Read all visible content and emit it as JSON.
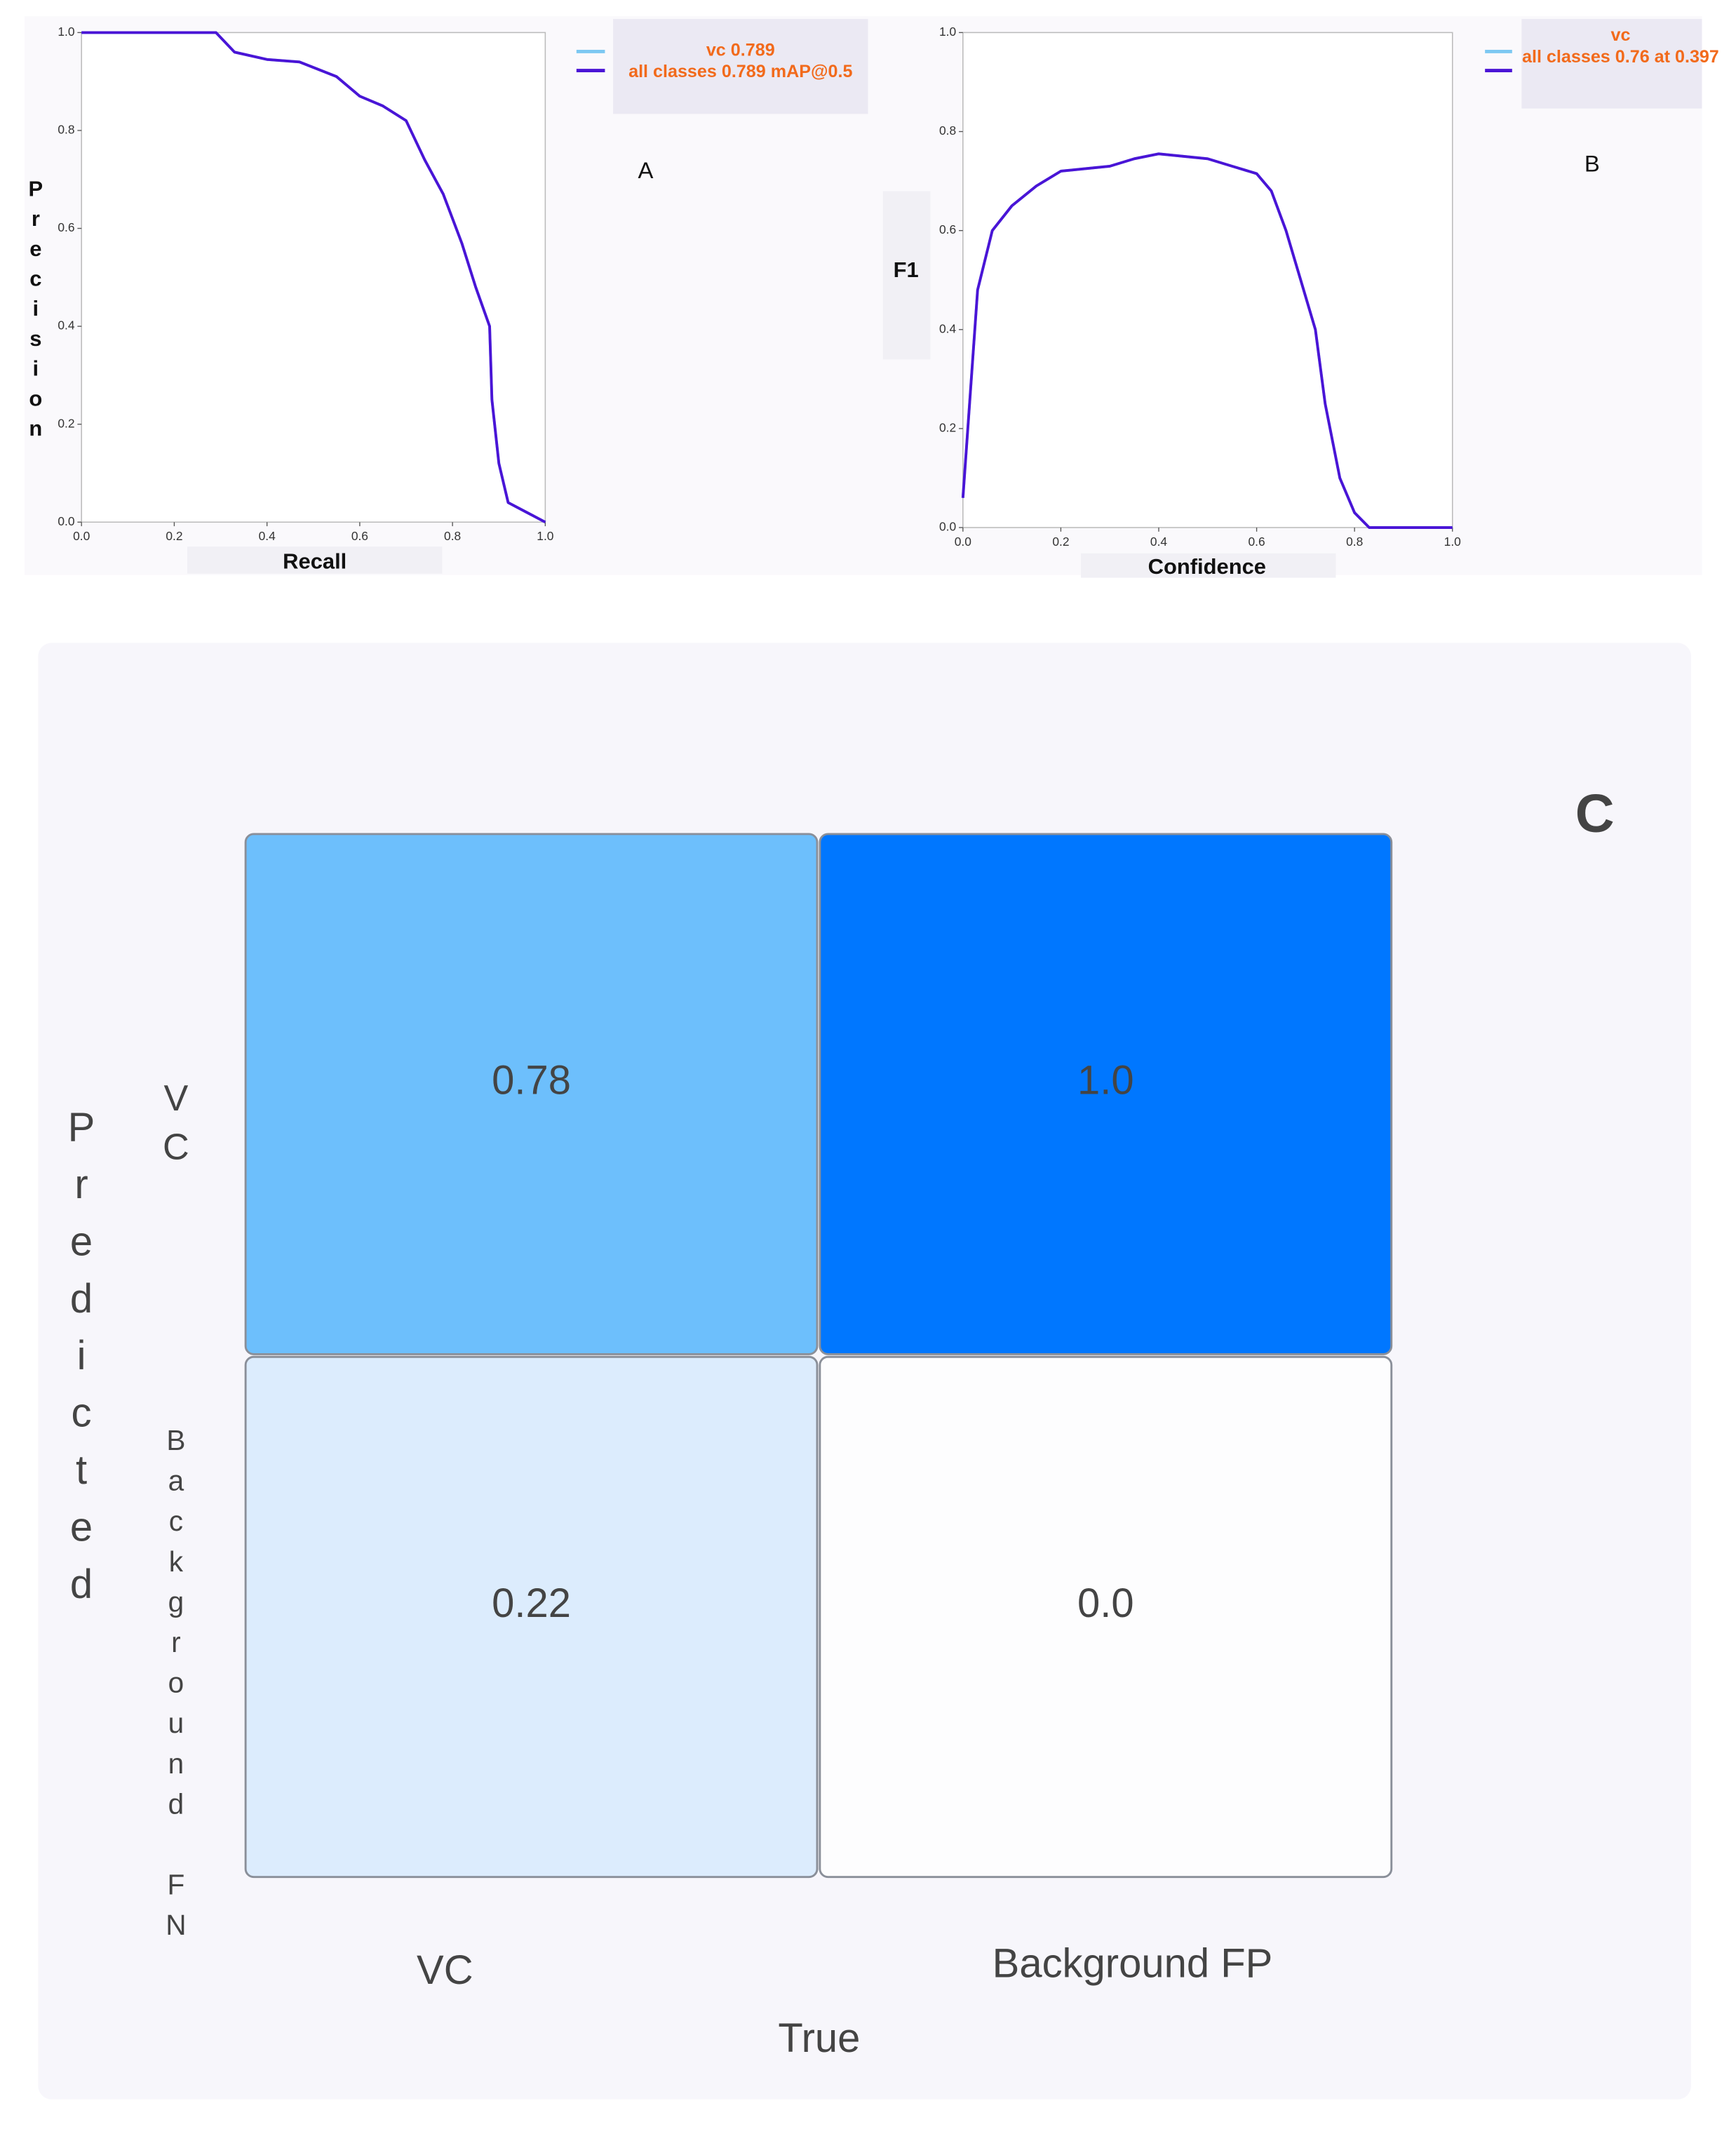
{
  "chart_data": [
    {
      "type": "line",
      "annotation": "A",
      "xlabel": "Recall",
      "ylabel": "Precision",
      "x": [
        0,
        0.29,
        0.33,
        0.4,
        0.47,
        0.55,
        0.6,
        0.65,
        0.7,
        0.74,
        0.78,
        0.82,
        0.85,
        0.88,
        0.885,
        0.9,
        0.92,
        0.96,
        1.0
      ],
      "series": [
        {
          "name": "vc 0.789",
          "color": "#7cc8f2",
          "values": [
            1,
            1,
            0.96,
            0.945,
            0.94,
            0.91,
            0.87,
            0.85,
            0.82,
            0.74,
            0.67,
            0.57,
            0.48,
            0.4,
            0.25,
            0.12,
            0.04,
            0.02,
            0
          ]
        },
        {
          "name": "all classes 0.789 mAP@0.5",
          "color": "#4a14d6",
          "values": [
            1,
            1,
            0.96,
            0.945,
            0.94,
            0.91,
            0.87,
            0.85,
            0.82,
            0.74,
            0.67,
            0.57,
            0.48,
            0.4,
            0.25,
            0.12,
            0.04,
            0.02,
            0
          ]
        }
      ],
      "xlim": [
        0,
        1
      ],
      "ylim": [
        0,
        1
      ],
      "xticks": [
        {
          "value": 0,
          "label": "0.0"
        },
        0.2,
        0.4,
        0.6,
        0.8,
        {
          "value": 1,
          "label": "1.0"
        }
      ],
      "yticks": [
        {
          "value": 0,
          "label": "0.0"
        },
        0.2,
        0.4,
        0.6,
        0.8,
        {
          "value": 1,
          "label": "1.0"
        }
      ]
    },
    {
      "type": "line",
      "annotation": "B",
      "xlabel": "Confidence",
      "ylabel": "F1",
      "x": [
        0,
        0.01,
        0.03,
        0.06,
        0.1,
        0.15,
        0.2,
        0.25,
        0.3,
        0.35,
        0.4,
        0.45,
        0.5,
        0.55,
        0.6,
        0.63,
        0.66,
        0.69,
        0.72,
        0.74,
        0.77,
        0.8,
        0.82,
        0.83,
        1.0
      ],
      "series": [
        {
          "name": "vc",
          "color": "#7cc8f2",
          "values": [
            0.06,
            0.2,
            0.48,
            0.6,
            0.65,
            0.69,
            0.72,
            0.725,
            0.73,
            0.745,
            0.755,
            0.75,
            0.745,
            0.73,
            0.715,
            0.68,
            0.6,
            0.5,
            0.4,
            0.25,
            0.1,
            0.03,
            0.01,
            0,
            0
          ]
        },
        {
          "name": "all classes 0.76 at 0.397",
          "color": "#4a14d6",
          "values": [
            0.06,
            0.2,
            0.48,
            0.6,
            0.65,
            0.69,
            0.72,
            0.725,
            0.73,
            0.745,
            0.755,
            0.75,
            0.745,
            0.73,
            0.715,
            0.68,
            0.6,
            0.5,
            0.4,
            0.25,
            0.1,
            0.03,
            0.01,
            0,
            0
          ]
        }
      ],
      "xlim": [
        0,
        1
      ],
      "ylim": [
        0,
        1
      ],
      "xticks": [
        {
          "value": 0,
          "label": "0.0"
        },
        0.2,
        0.4,
        0.6,
        0.8,
        {
          "value": 1,
          "label": "1.0"
        }
      ],
      "yticks": [
        {
          "value": 0,
          "label": "0.0"
        },
        0.2,
        0.4,
        0.6,
        0.8,
        {
          "value": 1,
          "label": "1.0"
        }
      ]
    },
    {
      "type": "heatmap",
      "annotation": "C",
      "xlabel": "True",
      "ylabel": "Predicted",
      "x_categories": [
        "VC",
        "Background FP"
      ],
      "y_categories": [
        "VC",
        "Background FN"
      ],
      "values": [
        [
          0.78,
          1.0
        ],
        [
          0.22,
          0.0
        ]
      ],
      "value_labels": [
        [
          "0.78",
          "1.0"
        ],
        [
          "0.22",
          "0.0"
        ]
      ],
      "colors": [
        [
          "#6dbffc",
          "#0077ff"
        ],
        [
          "#dcecfd",
          "#fdfdfe"
        ]
      ]
    }
  ]
}
